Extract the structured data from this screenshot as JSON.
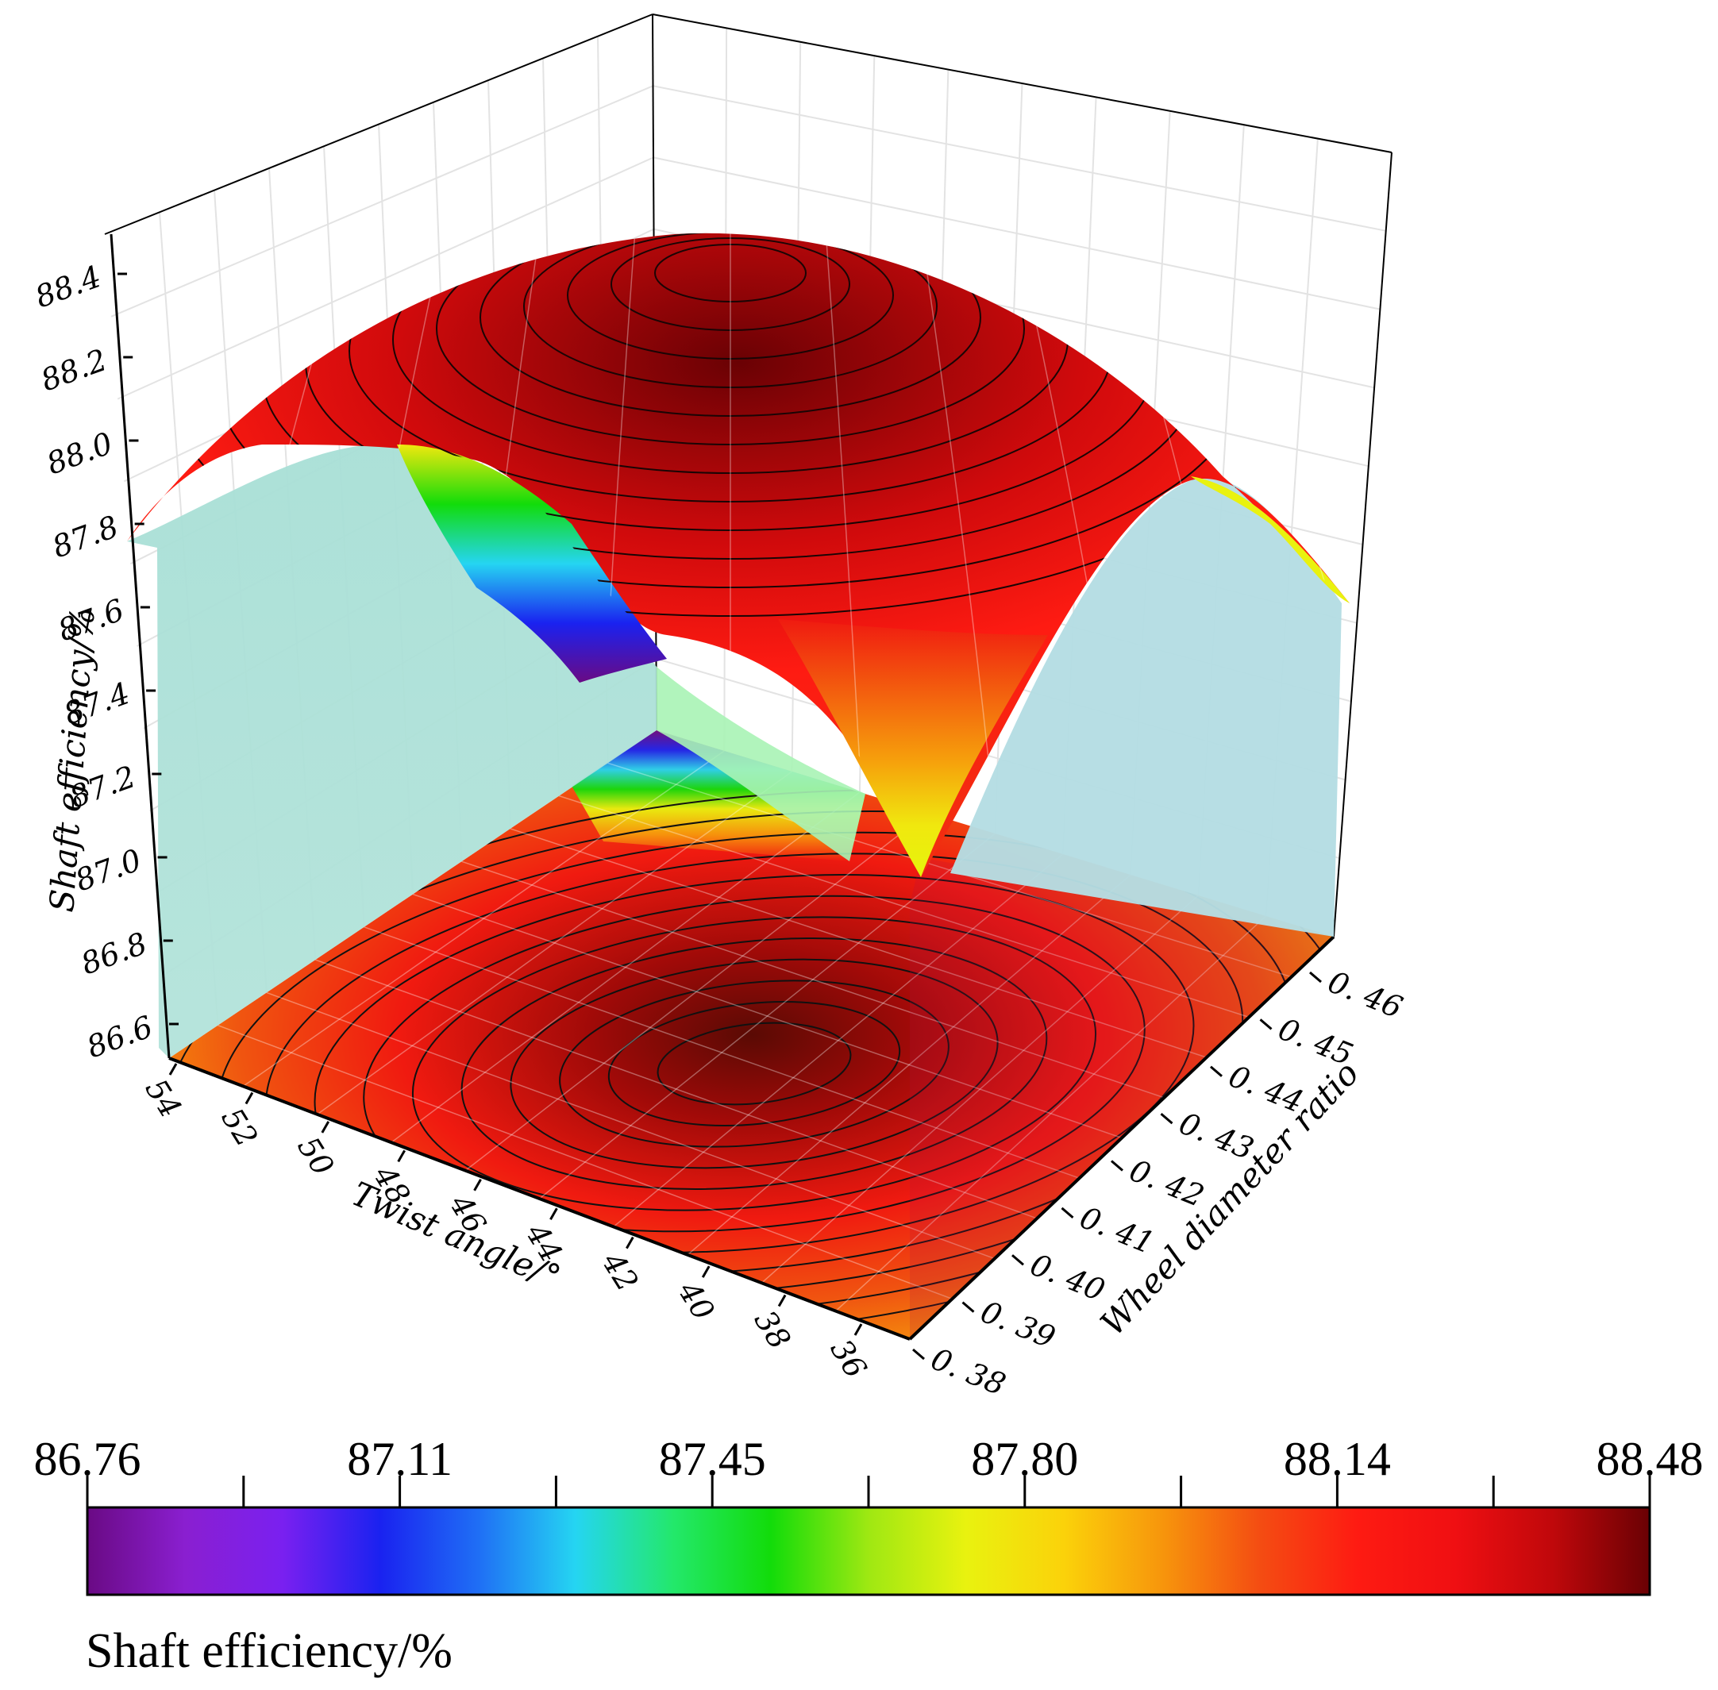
{
  "chart_data": {
    "type": "surface3d",
    "z_label": "Shaft efficiency/%",
    "x_label": "Twist angle/°",
    "y_label": "Wheel diameter ratio",
    "z_ticks": [
      "86.6",
      "86.8",
      "87.0",
      "87.2",
      "87.4",
      "87.6",
      "87.8",
      "88.0",
      "88.2",
      "88.4"
    ],
    "x_ticks": [
      "54",
      "52",
      "50",
      "48",
      "46",
      "44",
      "42",
      "40",
      "38",
      "36"
    ],
    "y_ticks": [
      "0. 38",
      "0. 39",
      "0. 40",
      "0. 41",
      "0. 42",
      "0. 43",
      "0. 44",
      "0. 45",
      "0. 46"
    ],
    "x_range": [
      35,
      55
    ],
    "y_range": [
      0.38,
      0.465
    ],
    "z_range": [
      86.5,
      88.5
    ],
    "peak": {
      "twist_angle": 45,
      "wheel_diameter_ratio": 0.43,
      "shaft_efficiency": 88.48
    },
    "minimum": {
      "twist_angle": 45,
      "wheel_diameter_ratio": 0.38,
      "shaft_efficiency": 86.76
    },
    "grid": true,
    "contours_projected_on_floor": true,
    "colorbar": {
      "title": "Shaft efficiency/%",
      "tick_labels": [
        "86.76",
        "87.11",
        "87.45",
        "87.80",
        "88.14",
        "88.48"
      ],
      "min": 86.76,
      "max": 88.48,
      "position": "bottom",
      "colors": [
        "#6a0a84",
        "#8a1fd0",
        "#7a20f0",
        "#1a22f0",
        "#1f6ef5",
        "#25d5f2",
        "#23e86b",
        "#12dc0a",
        "#9fe812",
        "#e9f20f",
        "#fbd20a",
        "#f7960c",
        "#f44d12",
        "#fe1b12",
        "#f00f12",
        "#c0080b",
        "#6a0104"
      ]
    }
  }
}
